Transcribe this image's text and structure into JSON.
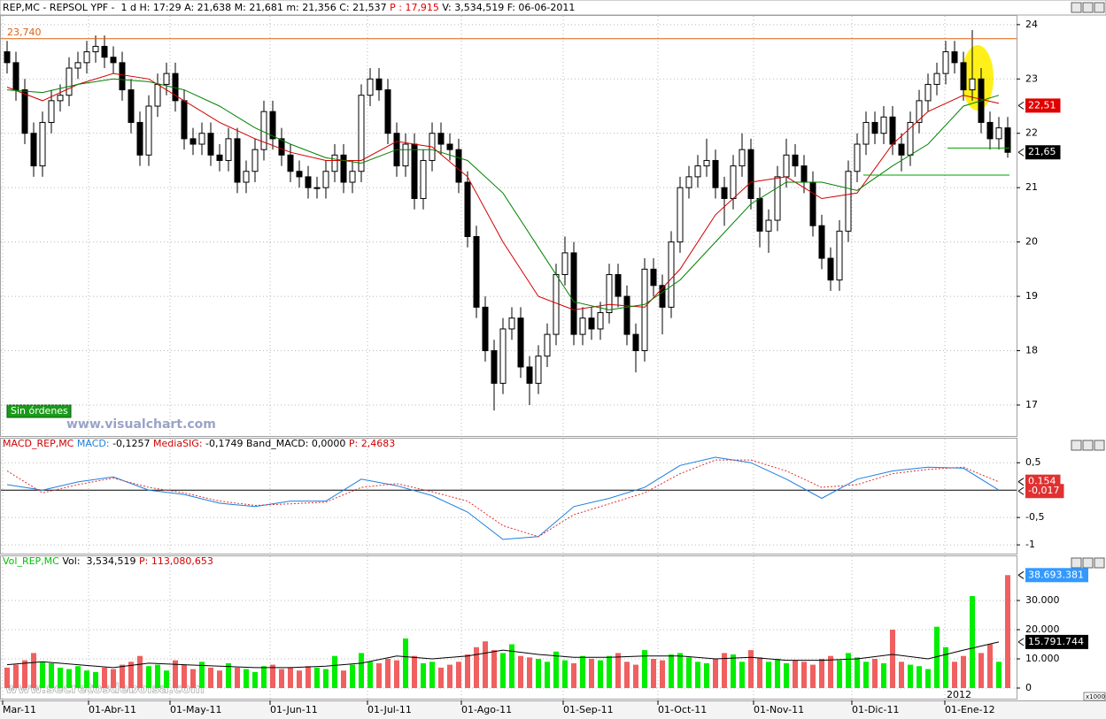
{
  "chart_data": [
    {
      "type": "candlestick",
      "header": [
        {
          "text": "REP,MC - REPSOL YPF -  1 d H: 17:29 A: 21,638 M: 21,681 m: 21,356 C: 21,537 ",
          "color": "#000000"
        },
        {
          "text": "P : 17,915",
          "color": "#e00000"
        },
        {
          "text": " V: 3,534,519 F: 06-06-2011",
          "color": "#000000"
        }
      ],
      "open": [
        23.5,
        23.3,
        22.8,
        22.0,
        21.4,
        22.2,
        22.6,
        22.7,
        23.2,
        23.3,
        23.5,
        23.6,
        23.4,
        23.3,
        22.8,
        22.2,
        21.6,
        22.5,
        22.9,
        23.1,
        22.6,
        21.9,
        21.8,
        22.0,
        21.6,
        21.5,
        21.9,
        21.1,
        21.3,
        21.7,
        22.4,
        21.9,
        21.6,
        21.3,
        21.2,
        21.0,
        21.0,
        21.3,
        21.6,
        21.1,
        21.3,
        22.7,
        23.0,
        22.8,
        22.0,
        21.4,
        21.8,
        20.8,
        21.5,
        22.0,
        21.8,
        21.7,
        21.1,
        20.1,
        18.8,
        18.0,
        17.4,
        18.4,
        18.6,
        17.7,
        17.4,
        17.9,
        18.3,
        19.4,
        19.8,
        18.3,
        18.6,
        18.4,
        18.7,
        19.4,
        19.0,
        18.3,
        18.0,
        19.5,
        19.2,
        18.8,
        20.0,
        21.0,
        21.2,
        21.4,
        21.5,
        21.0,
        20.8,
        21.4,
        21.7,
        20.8,
        20.2,
        20.4,
        21.2,
        21.6,
        21.4,
        21.1,
        20.3,
        19.7,
        19.3,
        20.2,
        21.3,
        21.8,
        22.2,
        22.0,
        22.3,
        21.8,
        21.6,
        22.2,
        22.6,
        22.9,
        23.1,
        23.5,
        23.3,
        22.8,
        23.0,
        22.2,
        21.9,
        22.1
      ],
      "high": [
        23.7,
        23.5,
        23.0,
        22.2,
        22.4,
        22.8,
        22.9,
        23.4,
        23.5,
        23.7,
        23.8,
        23.8,
        23.6,
        23.5,
        23.0,
        22.4,
        22.7,
        23.1,
        23.3,
        23.3,
        22.8,
        22.1,
        22.2,
        22.2,
        21.8,
        22.1,
        22.1,
        21.5,
        21.9,
        22.6,
        22.6,
        22.1,
        21.8,
        21.5,
        21.4,
        21.2,
        21.5,
        21.8,
        21.8,
        21.5,
        22.9,
        23.2,
        23.2,
        23.0,
        22.2,
        22.0,
        22.0,
        21.7,
        22.2,
        22.2,
        22.0,
        21.9,
        21.3,
        20.3,
        19.0,
        18.2,
        18.6,
        18.8,
        18.8,
        17.9,
        18.1,
        18.5,
        19.6,
        20.1,
        20.0,
        18.8,
        18.8,
        18.9,
        19.6,
        19.6,
        19.2,
        18.5,
        19.7,
        19.7,
        19.4,
        20.2,
        21.2,
        21.4,
        21.6,
        21.9,
        21.7,
        21.2,
        21.6,
        22.0,
        21.9,
        21.0,
        20.6,
        21.4,
        21.9,
        21.8,
        21.6,
        21.3,
        20.5,
        19.9,
        20.4,
        21.5,
        22.0,
        22.4,
        22.4,
        22.5,
        22.5,
        22.0,
        22.4,
        22.8,
        23.1,
        23.3,
        23.7,
        23.7,
        23.5,
        23.9,
        23.2,
        22.4,
        22.3,
        22.3
      ],
      "low": [
        23.1,
        22.6,
        21.8,
        21.2,
        21.2,
        22.0,
        22.4,
        22.5,
        23.0,
        23.1,
        23.3,
        23.2,
        23.1,
        22.6,
        22.0,
        21.4,
        21.4,
        22.3,
        22.7,
        22.4,
        21.7,
        21.6,
        21.6,
        21.4,
        21.3,
        21.3,
        20.9,
        20.9,
        21.1,
        21.5,
        21.7,
        21.4,
        21.1,
        21.0,
        20.8,
        20.8,
        20.8,
        21.1,
        20.9,
        20.9,
        21.1,
        22.5,
        22.6,
        21.8,
        21.2,
        21.2,
        20.6,
        20.6,
        21.3,
        21.6,
        21.5,
        20.9,
        19.9,
        18.6,
        17.8,
        16.9,
        17.2,
        18.2,
        17.5,
        17.0,
        17.2,
        17.7,
        18.1,
        19.2,
        18.1,
        18.1,
        18.2,
        18.2,
        18.5,
        18.8,
        18.1,
        17.6,
        17.8,
        19.0,
        18.3,
        18.6,
        19.8,
        20.8,
        21.0,
        21.2,
        20.8,
        20.3,
        20.6,
        21.2,
        20.6,
        19.9,
        19.8,
        20.2,
        21.0,
        21.2,
        20.9,
        20.1,
        19.5,
        19.1,
        19.1,
        20.0,
        21.1,
        21.6,
        21.8,
        21.8,
        21.6,
        21.3,
        21.4,
        22.0,
        22.4,
        22.7,
        22.9,
        23.1,
        22.6,
        22.6,
        22.0,
        21.7,
        21.7,
        21.55
      ],
      "close": [
        23.3,
        22.8,
        22.0,
        21.4,
        22.2,
        22.6,
        22.7,
        23.2,
        23.3,
        23.5,
        23.6,
        23.4,
        23.3,
        22.8,
        22.2,
        21.6,
        22.5,
        22.9,
        23.1,
        22.6,
        21.9,
        21.8,
        22.0,
        21.6,
        21.5,
        21.9,
        21.1,
        21.3,
        21.7,
        22.4,
        21.9,
        21.6,
        21.3,
        21.2,
        21.0,
        21.0,
        21.3,
        21.6,
        21.1,
        21.3,
        22.7,
        23.0,
        22.8,
        22.0,
        21.4,
        21.8,
        20.8,
        21.5,
        22.0,
        21.8,
        21.7,
        21.1,
        20.1,
        18.8,
        18.0,
        17.4,
        18.4,
        18.6,
        17.7,
        17.4,
        17.9,
        18.3,
        19.4,
        19.8,
        18.3,
        18.6,
        18.4,
        18.7,
        19.4,
        19.0,
        18.3,
        18.0,
        19.5,
        19.2,
        18.8,
        20.0,
        21.0,
        21.2,
        21.4,
        21.5,
        21.0,
        20.8,
        21.4,
        21.7,
        20.8,
        20.2,
        20.4,
        21.2,
        21.6,
        21.4,
        21.1,
        20.3,
        19.7,
        19.3,
        20.2,
        21.3,
        21.8,
        22.2,
        22.0,
        22.3,
        21.8,
        21.6,
        22.2,
        22.6,
        22.9,
        23.1,
        23.5,
        23.3,
        22.8,
        23.0,
        22.2,
        21.9,
        22.1,
        21.65
      ],
      "lines": [
        {
          "color": "#d00000",
          "x": [
            0,
            4,
            8,
            12,
            16,
            20,
            24,
            28,
            32,
            36,
            40,
            44,
            48,
            52,
            56,
            60,
            64,
            68,
            72,
            76,
            80,
            84,
            88,
            92,
            96,
            100,
            104,
            108,
            112
          ],
          "values": [
            22.85,
            22.6,
            22.9,
            23.1,
            23.0,
            22.6,
            22.2,
            21.9,
            21.65,
            21.5,
            21.5,
            21.85,
            21.75,
            21.2,
            20.0,
            19.0,
            18.75,
            18.85,
            18.8,
            19.5,
            20.5,
            21.1,
            21.2,
            20.8,
            20.9,
            21.8,
            22.4,
            22.7,
            22.55
          ]
        },
        {
          "color": "#008000",
          "x": [
            0,
            4,
            8,
            12,
            16,
            20,
            24,
            28,
            32,
            36,
            40,
            44,
            48,
            52,
            56,
            60,
            64,
            68,
            72,
            76,
            80,
            84,
            88,
            92,
            96,
            100,
            104,
            108,
            112
          ],
          "values": [
            22.8,
            22.75,
            22.9,
            23.0,
            22.95,
            22.8,
            22.5,
            22.1,
            21.8,
            21.55,
            21.45,
            21.7,
            21.7,
            21.5,
            20.9,
            19.9,
            18.9,
            18.75,
            18.85,
            19.3,
            20.0,
            20.7,
            21.1,
            21.1,
            20.95,
            21.4,
            21.8,
            22.5,
            22.7
          ]
        }
      ],
      "xlim": [
        -0.8,
        114
      ],
      "xticks": [
        {
          "value": -0.5,
          "label": "Mar-11"
        },
        {
          "value": 9.2,
          "label": "01-Abr-11"
        },
        {
          "value": 18.4,
          "label": "01-May-11"
        },
        {
          "value": 29.7,
          "label": "01-Jun-11"
        },
        {
          "value": 40.7,
          "label": "01-Jul-11"
        },
        {
          "value": 51.3,
          "label": "01-Ago-11"
        },
        {
          "value": 62.8,
          "label": "01-Sep-11"
        },
        {
          "value": 73.5,
          "label": "01-Oct-11"
        },
        {
          "value": 84.3,
          "label": "01-Nov-11"
        },
        {
          "value": 95.4,
          "label": "01-Dic-11"
        },
        {
          "value": 105.9,
          "label": "01-Ene-12"
        }
      ],
      "year_label": {
        "value": 105.9,
        "label": "2012"
      },
      "ylim": [
        16.43,
        24.16
      ],
      "yticks": [
        17,
        18,
        19,
        20,
        21,
        22,
        23,
        24
      ],
      "grid": true,
      "levels": [
        {
          "value": 23.74,
          "label": "23,740",
          "color": "#e06010"
        }
      ],
      "support_lines": [
        {
          "value": 21.23,
          "x": [
            96.7,
            113.2
          ],
          "color": "#00a000"
        },
        {
          "value": 21.73,
          "x": [
            106.2,
            113.2
          ],
          "color": "#00a000"
        }
      ],
      "tags": [
        {
          "value": 22.51,
          "label": "22,51",
          "color": "#e00000"
        },
        {
          "value": 21.65,
          "label": "21,65",
          "color": "#000000"
        }
      ],
      "button": "Sin órdenes",
      "watermark": "www.visualchart.com"
    },
    {
      "type": "line",
      "header": [
        {
          "text": "MACD_REP,MC ",
          "color": "#d00000"
        },
        {
          "text": "MACD: ",
          "color": "#1e7fe0"
        },
        {
          "text": "-0,1257 ",
          "color": "#000000"
        },
        {
          "text": "MediaSIG: ",
          "color": "#d00000"
        },
        {
          "text": "-0,1749 ",
          "color": "#000000"
        },
        {
          "text": "Band_MACD: 0,0000 ",
          "color": "#000000"
        },
        {
          "text": "P: 2,4683",
          "color": "#d00000"
        }
      ],
      "series": [
        {
          "color": "#1e7fe0",
          "style": "solid",
          "x": [
            0,
            4,
            8,
            12,
            16,
            20,
            24,
            28,
            32,
            36,
            40,
            44,
            48,
            52,
            56,
            60,
            64,
            68,
            72,
            76,
            80,
            84,
            88,
            92,
            96,
            100,
            104,
            108,
            112
          ],
          "values": [
            0.1,
            0.0,
            0.15,
            0.24,
            0.0,
            -0.08,
            -0.24,
            -0.3,
            -0.2,
            -0.2,
            0.2,
            0.08,
            -0.1,
            -0.4,
            -0.9,
            -0.85,
            -0.3,
            -0.15,
            0.05,
            0.45,
            0.6,
            0.5,
            0.2,
            -0.15,
            0.2,
            0.35,
            0.42,
            0.4,
            0.0
          ]
        },
        {
          "color": "#e03030",
          "style": "dotted",
          "x": [
            0,
            4,
            8,
            12,
            16,
            20,
            24,
            28,
            32,
            36,
            40,
            44,
            48,
            52,
            56,
            60,
            64,
            68,
            72,
            76,
            80,
            84,
            88,
            92,
            96,
            100,
            104,
            108,
            112
          ],
          "values": [
            0.35,
            -0.05,
            0.1,
            0.22,
            0.05,
            -0.05,
            -0.2,
            -0.28,
            -0.25,
            -0.22,
            0.05,
            0.12,
            -0.03,
            -0.2,
            -0.65,
            -0.85,
            -0.45,
            -0.25,
            -0.05,
            0.3,
            0.55,
            0.55,
            0.35,
            0.05,
            0.1,
            0.3,
            0.38,
            0.42,
            0.15
          ]
        }
      ],
      "reference_line": 0,
      "ylim": [
        -1.16,
        0.94
      ],
      "yticks": [
        {
          "value": 0.5,
          "label": "0,5"
        },
        {
          "value": -0.5,
          "label": "-0,5"
        },
        -1
      ],
      "grid": true,
      "tags": [
        {
          "value": 0.154,
          "label": "0,154",
          "color": "#e03030"
        },
        {
          "value": -0.017,
          "label": "-0,017",
          "color": "#e03030"
        }
      ]
    },
    {
      "type": "bar",
      "header": [
        {
          "text": "Vol_REP,MC ",
          "color": "#00c000"
        },
        {
          "text": "Vol:  3,534,519 ",
          "color": "#000000"
        },
        {
          "text": "P: 113,080,653",
          "color": "#d00000"
        }
      ],
      "values": [
        7000,
        8000,
        9500,
        12000,
        9000,
        8500,
        7000,
        6500,
        7500,
        6000,
        5500,
        7000,
        6500,
        8000,
        9000,
        11000,
        7500,
        8000,
        6000,
        9500,
        8000,
        6500,
        9000,
        7000,
        6000,
        8500,
        7000,
        6500,
        5500,
        7500,
        8000,
        6500,
        7000,
        6000,
        7500,
        7000,
        6500,
        11000,
        6000,
        8000,
        12000,
        9000,
        8500,
        10000,
        9500,
        17000,
        11000,
        8500,
        9000,
        7000,
        8000,
        9000,
        11500,
        14000,
        16000,
        13000,
        12000,
        15000,
        11000,
        10500,
        10000,
        9000,
        12500,
        9500,
        8500,
        11000,
        10000,
        9500,
        11000,
        12000,
        9000,
        8000,
        13000,
        10000,
        9500,
        11500,
        12000,
        10500,
        9000,
        8500,
        10000,
        12000,
        11500,
        9000,
        13000,
        10500,
        9000,
        10000,
        8500,
        9500,
        9000,
        8000,
        10000,
        11000,
        9500,
        12000,
        10500,
        9000,
        10000,
        8500,
        20000,
        9000,
        8000,
        7500,
        6500,
        21000,
        14000,
        9000,
        11000,
        31500,
        12000,
        15000,
        9000,
        38693.381
      ],
      "up_color": "#00ee00",
      "down_color": "#f06060",
      "lines": [
        {
          "color": "#000000",
          "x": [
            0,
            4,
            8,
            12,
            16,
            20,
            24,
            28,
            32,
            36,
            40,
            44,
            48,
            52,
            56,
            60,
            64,
            68,
            72,
            76,
            80,
            84,
            88,
            92,
            96,
            100,
            104,
            108,
            112
          ],
          "values": [
            8000,
            9000,
            8000,
            7000,
            8500,
            8000,
            7500,
            7000,
            7000,
            7500,
            8500,
            11000,
            10000,
            11000,
            13000,
            11500,
            10500,
            10500,
            11000,
            11000,
            10000,
            10500,
            9500,
            9500,
            10000,
            11500,
            10000,
            13000,
            15791.744
          ]
        }
      ],
      "ylim": [
        -3636,
        45150
      ],
      "yticks": [
        0,
        {
          "value": 10000,
          "label": "10.000"
        },
        {
          "value": 20000,
          "label": "20.000"
        },
        {
          "value": 30000,
          "label": "30.000"
        }
      ],
      "grid": true,
      "tags": [
        {
          "value": 38693.381,
          "label": "38.693.381",
          "color": "#3399ff"
        },
        {
          "value": 15791.744,
          "label": "15.791.744",
          "color": "#000000"
        }
      ],
      "unit_label": "x1000",
      "watermark": "www.secretosdebolsa.com"
    }
  ]
}
